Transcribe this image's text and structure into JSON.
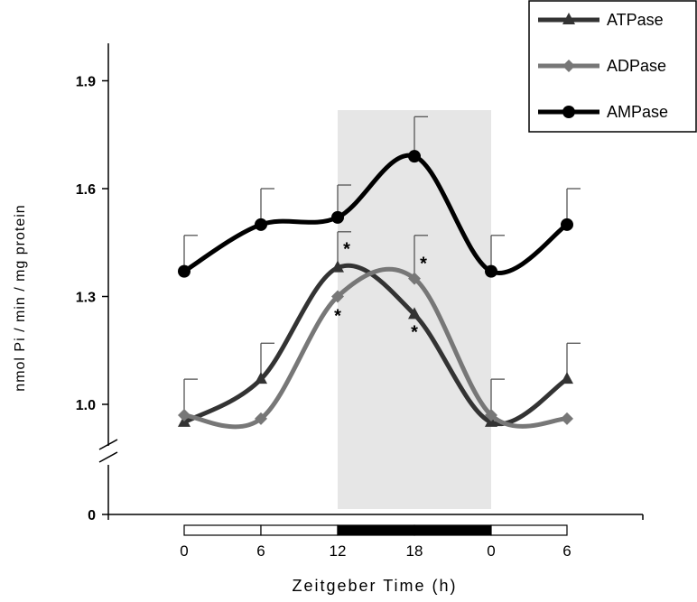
{
  "chart_data": {
    "type": "line",
    "xlabel": "Zeitgeber Time (h)",
    "ylabel": "nmol Pi / min / mg protein",
    "x_tick_labels": [
      "0",
      "6",
      "12",
      "18",
      "0",
      "6"
    ],
    "y_ticks": [
      1.0,
      1.3,
      1.6,
      1.9
    ],
    "y_tick_labels": [
      "1.0",
      "1.3",
      "1.6",
      "1.9"
    ],
    "y_zero_label": "0",
    "y_axis_break": true,
    "ylim": [
      0.85,
      2.0
    ],
    "dark_phase": {
      "start_index": 2,
      "end_index": 4
    },
    "light_dark_bar": [
      "light",
      "light",
      "dark",
      "dark",
      "light"
    ],
    "grid": false,
    "legend_position": "top-right",
    "series": [
      {
        "name": "ATPase",
        "color": "#333333",
        "marker": "triangle",
        "values": [
          0.95,
          1.07,
          1.38,
          1.25,
          0.95,
          1.07
        ],
        "error": [
          0.0,
          0.1,
          0.1,
          0.0,
          0.0,
          0.1
        ],
        "significance": [
          "",
          "",
          "*",
          "*",
          "",
          ""
        ]
      },
      {
        "name": "ADPase",
        "color": "#777777",
        "marker": "diamond",
        "values": [
          0.97,
          0.96,
          1.3,
          1.35,
          0.97,
          0.96
        ],
        "error": [
          0.1,
          0.0,
          0.0,
          0.12,
          0.1,
          0.0
        ],
        "significance": [
          "",
          "",
          "*",
          "*",
          "",
          ""
        ]
      },
      {
        "name": "AMPase",
        "color": "#000000",
        "marker": "circle",
        "values": [
          1.37,
          1.5,
          1.52,
          1.69,
          1.37,
          1.5
        ],
        "error": [
          0.1,
          0.1,
          0.09,
          0.11,
          0.1,
          0.1
        ],
        "significance": [
          "",
          "",
          "",
          "",
          "",
          ""
        ]
      }
    ]
  }
}
